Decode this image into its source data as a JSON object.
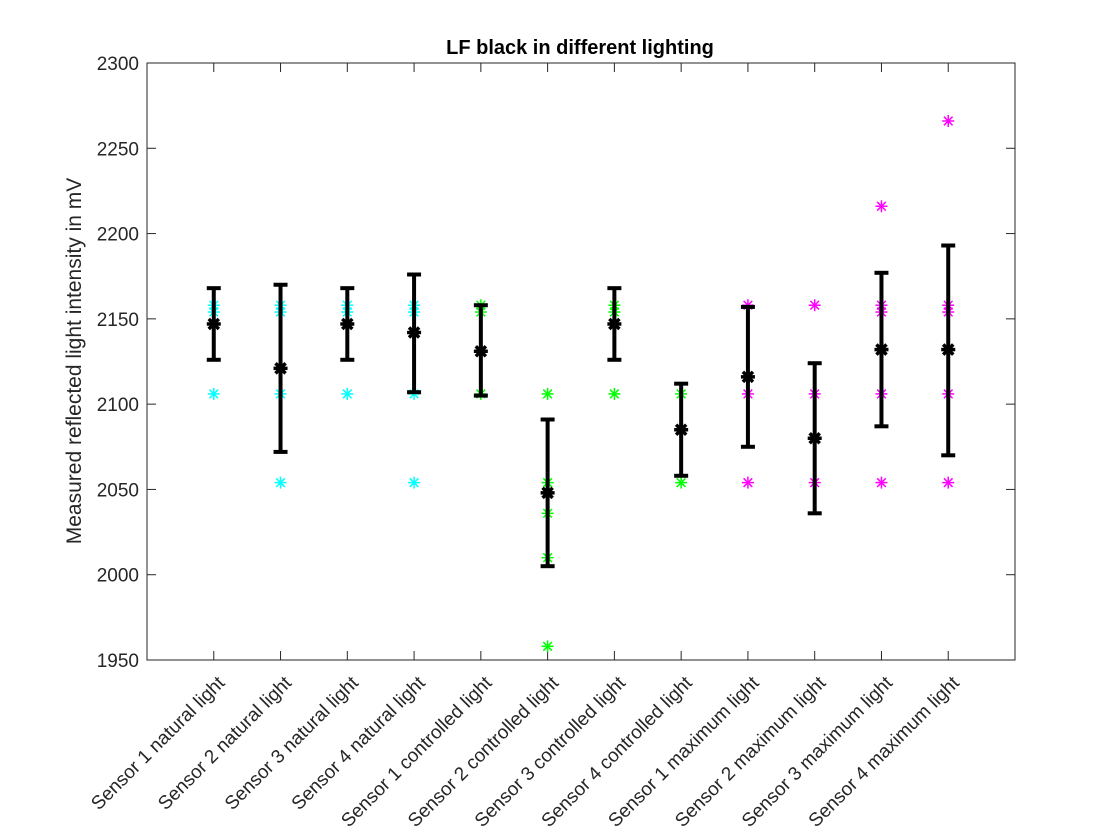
{
  "chart_data": {
    "type": "scatter",
    "title": "LF black in different lighting",
    "xlabel": "",
    "ylabel": "Measured reflected light intensity in mV",
    "ylim": [
      1950,
      2300
    ],
    "yticks": [
      1950,
      2000,
      2050,
      2100,
      2150,
      2200,
      2250,
      2300
    ],
    "grid": false,
    "categories": [
      "Sensor 1 natural light",
      "Sensor 2 natural light",
      "Sensor 3 natural light",
      "Sensor 4 natural light",
      "Sensor 1 controlled light",
      "Sensor 2 controlled light",
      "Sensor 3 controlled light",
      "Sensor 4 controlled light",
      "Sensor 1 maximum light",
      "Sensor 2 maximum light",
      "Sensor 3 maximum light",
      "Sensor 4 maximum light"
    ],
    "series": [
      {
        "color": "#00ffff",
        "points": [
          {
            "category": 0,
            "values": [
              2158,
              2154,
              2106
            ]
          },
          {
            "category": 1,
            "values": [
              2158,
              2154,
              2106,
              2054
            ]
          },
          {
            "category": 2,
            "values": [
              2158,
              2154,
              2106
            ]
          },
          {
            "category": 3,
            "values": [
              2158,
              2154,
              2106,
              2054
            ]
          }
        ]
      },
      {
        "color": "#00ff00",
        "points": [
          {
            "category": 4,
            "values": [
              2158,
              2154,
              2106
            ]
          },
          {
            "category": 5,
            "values": [
              2106,
              2054,
              2036,
              2010,
              1958
            ]
          },
          {
            "category": 6,
            "values": [
              2158,
              2154,
              2106
            ]
          },
          {
            "category": 7,
            "values": [
              2106,
              2054
            ]
          }
        ]
      },
      {
        "color": "#ff00ff",
        "points": [
          {
            "category": 8,
            "values": [
              2158,
              2106,
              2054
            ]
          },
          {
            "category": 9,
            "values": [
              2158,
              2106,
              2054
            ]
          },
          {
            "category": 10,
            "values": [
              2216,
              2158,
              2154,
              2106,
              2054
            ]
          },
          {
            "category": 11,
            "values": [
              2266,
              2158,
              2154,
              2106,
              2054
            ]
          }
        ]
      }
    ],
    "mean_error": {
      "color": "#000000",
      "means": [
        2147,
        2121,
        2147,
        2142,
        2131,
        2048,
        2147,
        2085,
        2116,
        2080,
        2132,
        2132
      ],
      "lower": [
        2126,
        2072,
        2126,
        2107,
        2105,
        2005,
        2126,
        2058,
        2075,
        2036,
        2087,
        2070
      ],
      "upper": [
        2168,
        2170,
        2168,
        2176,
        2158,
        2091,
        2168,
        2112,
        2157,
        2124,
        2177,
        2193
      ]
    }
  }
}
